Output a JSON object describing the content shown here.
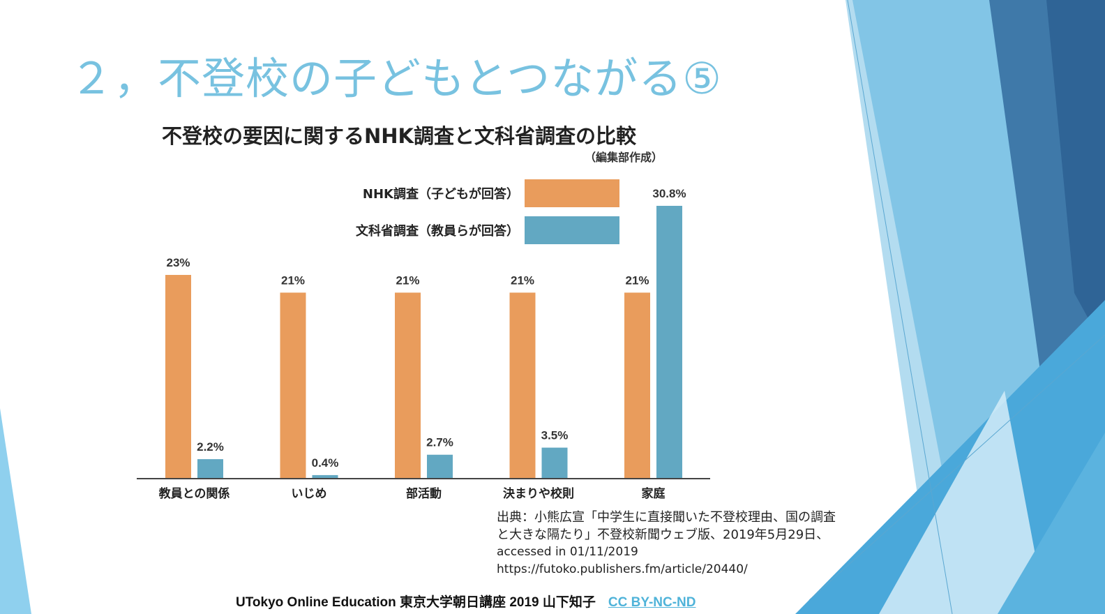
{
  "slide": {
    "title": "２，不登校の子どもとつながる⑤"
  },
  "colors": {
    "nhk": "#e99c5c",
    "mext": "#62a8c2",
    "title": "#78c2e0",
    "link": "#4fb3d9"
  },
  "chart_data": {
    "type": "bar",
    "title": "不登校の要因に関するNHK調査と文科省調査の比較",
    "subtitle": "（編集部作成）",
    "categories": [
      "教員との関係",
      "いじめ",
      "部活動",
      "決まりや校則",
      "家庭"
    ],
    "series": [
      {
        "name": "NHK調査（子どもが回答）",
        "values": [
          23,
          21,
          21,
          21,
          21
        ],
        "labels": [
          "23%",
          "21%",
          "21%",
          "21%",
          "21%"
        ]
      },
      {
        "name": "文科省調査（教員らが回答）",
        "values": [
          2.2,
          0.4,
          2.7,
          3.5,
          30.8
        ],
        "labels": [
          "2.2%",
          "0.4%",
          "2.7%",
          "3.5%",
          "30.8%"
        ]
      }
    ],
    "ylim": [
      0,
      30.8
    ],
    "legend": "top-right",
    "grid": false
  },
  "source": {
    "line1": "出典：小熊広宣「中学生に直接聞いた不登校理由、国の調査",
    "line2": "と大きな隔たり」不登校新聞ウェブ版、2019年5月29日、",
    "line3": "accessed in 01/11/2019",
    "line4": "https://futoko.publishers.fm/article/20440/"
  },
  "footer": {
    "text": "UTokyo Online Education 東京大学朝日講座 2019 山下知子",
    "license": "CC BY-NC-ND"
  }
}
